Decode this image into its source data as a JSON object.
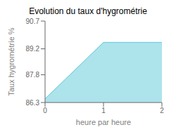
{
  "chart_data": {
    "type": "area",
    "title": "Evolution du taux d'hygrométrie",
    "xlabel": "heure par heure",
    "ylabel": "Taux hygrométrie %",
    "x": [
      0,
      1,
      2
    ],
    "values": [
      86.5,
      89.55,
      89.55
    ],
    "xlim": [
      0,
      2
    ],
    "ylim": [
      86.3,
      90.7
    ],
    "xticks": [
      0,
      1,
      2
    ],
    "yticks": [
      86.3,
      87.8,
      89.2,
      90.7
    ],
    "color": "#5bc8d8",
    "grid": false
  }
}
